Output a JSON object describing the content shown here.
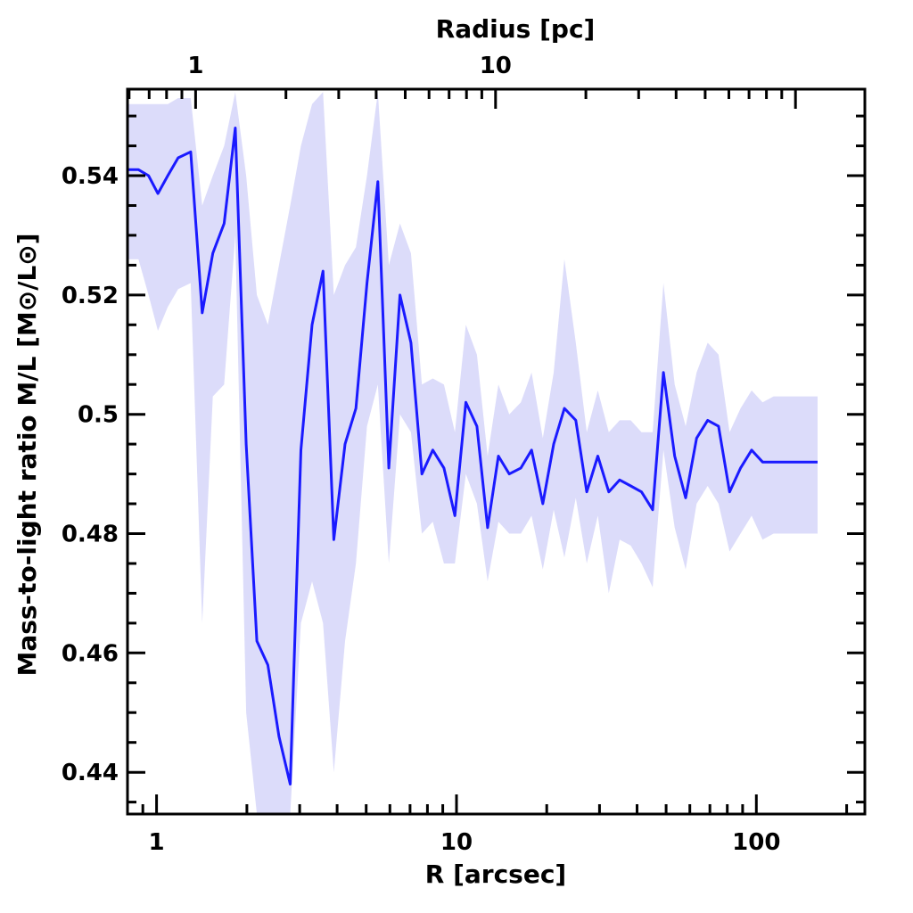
{
  "chart_data": {
    "type": "line",
    "xlabel_bottom": "R [arcsec]",
    "xlabel_top": "Radius [pc]",
    "ylabel": "Mass-to-light ratio M/L [M⊙/L⊙]",
    "x_scale": "log",
    "xlim": [
      0.8,
      230
    ],
    "ylim": [
      0.433,
      0.5545
    ],
    "x_ticks_bottom": [
      {
        "value": 1,
        "label": "1"
      },
      {
        "value": 10,
        "label": "10"
      },
      {
        "value": 100,
        "label": "100"
      }
    ],
    "x_ticks_top": [
      {
        "value": 1.35,
        "label": "1"
      },
      {
        "value": 13.5,
        "label": "10"
      }
    ],
    "y_ticks": [
      {
        "value": 0.44,
        "label": "0.44"
      },
      {
        "value": 0.46,
        "label": "0.46"
      },
      {
        "value": 0.48,
        "label": "0.48"
      },
      {
        "value": 0.5,
        "label": "0.5"
      },
      {
        "value": 0.52,
        "label": "0.52"
      },
      {
        "value": 0.54,
        "label": "0.54"
      }
    ],
    "line_color": "#1a1aff",
    "band_color": "#dcdcfa",
    "series": [
      {
        "x": [
          0.8,
          0.87,
          0.94,
          1.01,
          1.09,
          1.18,
          1.3,
          1.42,
          1.54,
          1.68,
          1.83,
          1.99,
          2.16,
          2.35,
          2.56,
          2.79,
          3.03,
          3.3,
          3.59,
          3.9,
          4.25,
          4.62,
          5.03,
          5.47,
          5.95,
          6.48,
          7.05,
          7.67,
          8.34,
          9.08,
          9.88,
          10.75,
          11.7,
          12.7,
          13.8,
          15.0,
          16.4,
          17.8,
          19.4,
          21.1,
          22.9,
          25.0,
          27.2,
          29.6,
          32.2,
          35.0,
          38.1,
          41.4,
          45.1,
          49.0,
          53.4,
          58.1,
          63.2,
          68.8,
          74.8,
          81.4,
          88.6,
          96.4,
          104.9,
          114.1,
          124.2,
          135.1,
          147.0,
          160.0
        ],
        "values": [
          0.541,
          0.541,
          0.54,
          0.537,
          0.54,
          0.543,
          0.544,
          0.517,
          0.527,
          0.532,
          0.548,
          0.495,
          0.462,
          0.458,
          0.446,
          0.438,
          0.494,
          0.515,
          0.524,
          0.479,
          0.495,
          0.501,
          0.522,
          0.539,
          0.491,
          0.52,
          0.512,
          0.49,
          0.494,
          0.491,
          0.483,
          0.502,
          0.498,
          0.481,
          0.493,
          0.49,
          0.491,
          0.494,
          0.485,
          0.495,
          0.501,
          0.499,
          0.487,
          0.493,
          0.487,
          0.489,
          0.488,
          0.487,
          0.484,
          0.507,
          0.493,
          0.486,
          0.496,
          0.499,
          0.498,
          0.487,
          0.491,
          0.494,
          0.492,
          0.492,
          0.492,
          0.492,
          0.492,
          0.492
        ],
        "upper": [
          0.552,
          0.552,
          0.552,
          0.552,
          0.552,
          0.553,
          0.553,
          0.535,
          0.54,
          0.545,
          0.554,
          0.54,
          0.52,
          0.515,
          0.525,
          0.535,
          0.545,
          0.552,
          0.554,
          0.52,
          0.525,
          0.528,
          0.54,
          0.554,
          0.525,
          0.532,
          0.527,
          0.505,
          0.506,
          0.505,
          0.497,
          0.515,
          0.51,
          0.493,
          0.505,
          0.5,
          0.502,
          0.507,
          0.496,
          0.507,
          0.526,
          0.512,
          0.497,
          0.504,
          0.497,
          0.499,
          0.499,
          0.497,
          0.497,
          0.522,
          0.505,
          0.498,
          0.507,
          0.512,
          0.51,
          0.497,
          0.501,
          0.504,
          0.502,
          0.503,
          0.503,
          0.503,
          0.503,
          0.503
        ],
        "lower": [
          0.526,
          0.526,
          0.52,
          0.514,
          0.518,
          0.521,
          0.522,
          0.465,
          0.503,
          0.505,
          0.53,
          0.45,
          0.433,
          0.433,
          0.433,
          0.433,
          0.465,
          0.472,
          0.465,
          0.44,
          0.462,
          0.475,
          0.498,
          0.505,
          0.475,
          0.5,
          0.497,
          0.48,
          0.482,
          0.475,
          0.475,
          0.49,
          0.485,
          0.472,
          0.482,
          0.48,
          0.48,
          0.483,
          0.474,
          0.484,
          0.476,
          0.486,
          0.475,
          0.483,
          0.47,
          0.479,
          0.478,
          0.475,
          0.471,
          0.494,
          0.481,
          0.474,
          0.485,
          0.488,
          0.485,
          0.477,
          0.48,
          0.483,
          0.479,
          0.48,
          0.48,
          0.48,
          0.48,
          0.48
        ]
      }
    ]
  }
}
